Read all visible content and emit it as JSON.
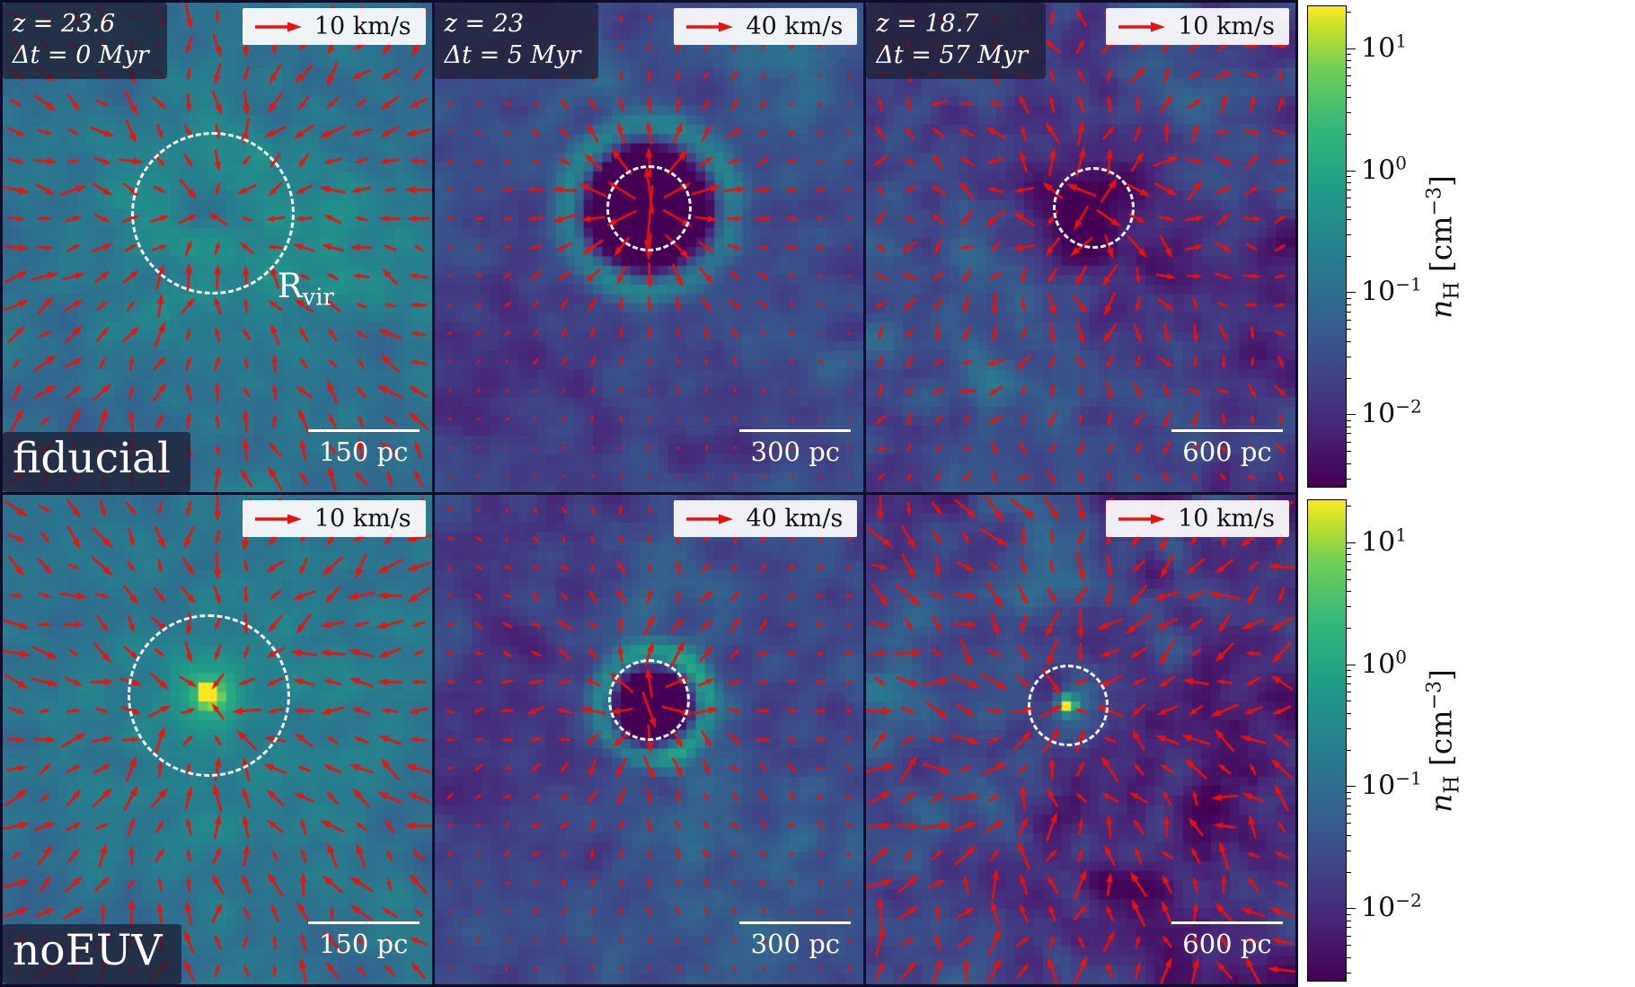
{
  "figure": {
    "colors": {
      "arrow": "#e8130c",
      "circle": "#ffffff",
      "panel_border": "#0e0e2a",
      "label_box": "rgba(32,32,54,0.78)",
      "key_box": "rgba(255,255,255,0.92)"
    }
  },
  "chart_data": {
    "type": "heatmap",
    "title": "",
    "colormap": "viridis",
    "log_range": [
      -2.6,
      1.35
    ],
    "grid": {
      "rows": 2,
      "cols": 3
    },
    "colorbar": {
      "base": "10",
      "ticks": [
        {
          "value": 1,
          "exp": "1"
        },
        {
          "value": 0,
          "exp": "0"
        },
        {
          "value": -1,
          "exp": "−1"
        },
        {
          "value": -2,
          "exp": "−2"
        }
      ],
      "label": {
        "var": "n",
        "sub": "H",
        "pre": " [cm",
        "sup": "−3",
        "post": "]"
      },
      "label_plain": "n_H [cm^-3]"
    },
    "panels": [
      {
        "id": "fiducial-t0",
        "corner": {
          "line1": "z = 23.6",
          "line2": "Δt = 0 Myr"
        },
        "quiver_key": "10 km/s",
        "scale_bar": "150 pc",
        "run_label": "fiducial",
        "rvir": {
          "main": "R",
          "sub": "vir"
        },
        "circle": {
          "cx": 0.49,
          "cy": 0.43,
          "r": 0.19
        },
        "field": {
          "base": -0.95,
          "noise": 0.18,
          "seed": 11,
          "features": [
            {
              "type": "blob",
              "x": 0.49,
              "y": 0.43,
              "s": 0.22,
              "a": 0.5
            },
            {
              "type": "blob",
              "x": 0.48,
              "y": 0.4,
              "s": 0.055,
              "a": -0.5
            },
            {
              "type": "blob",
              "x": 0.8,
              "y": 0.52,
              "s": 0.13,
              "a": 0.3
            },
            {
              "type": "blob",
              "x": 0.08,
              "y": 0.9,
              "s": 0.15,
              "a": -0.25
            }
          ]
        },
        "arrows": {
          "mode": "inflow",
          "n": 15,
          "len": 21,
          "swirl": 0.5,
          "seed": 101
        }
      },
      {
        "id": "fiducial-t5",
        "corner": {
          "line1": "z = 23",
          "line2": "Δt = 5 Myr"
        },
        "quiver_key": "40 km/s",
        "scale_bar": "300 pc",
        "circle": {
          "cx": 0.5,
          "cy": 0.42,
          "r": 0.1
        },
        "field": {
          "base": -1.55,
          "noise": 0.22,
          "seed": 22,
          "features": [
            {
              "type": "ring",
              "x": 0.5,
              "y": 0.42,
              "r0": 0.185,
              "w": 0.03,
              "a": 1.2
            },
            {
              "type": "disk",
              "x": 0.5,
              "y": 0.42,
              "r0": 0.16,
              "w": 0.018,
              "a": -1.7
            },
            {
              "type": "blob",
              "x": 0.82,
              "y": 0.1,
              "s": 0.11,
              "a": 0.55
            },
            {
              "type": "blob",
              "x": 0.12,
              "y": 0.72,
              "s": 0.18,
              "a": -0.3
            },
            {
              "type": "blob",
              "x": 0.5,
              "y": 0.95,
              "s": 0.25,
              "a": -0.2
            }
          ]
        },
        "arrows": {
          "mode": "outflow",
          "n": 15,
          "lmax": 62,
          "decay": 0.17,
          "lmin": 2.5,
          "swirl": 0.18,
          "seed": 202
        }
      },
      {
        "id": "fiducial-t57",
        "corner": {
          "line1": "z = 18.7",
          "line2": "Δt = 57 Myr"
        },
        "quiver_key": "10 km/s",
        "scale_bar": "600 pc",
        "circle": {
          "cx": 0.53,
          "cy": 0.42,
          "r": 0.095
        },
        "field": {
          "base": -1.8,
          "noise": 0.3,
          "seed": 33,
          "features": [
            {
              "type": "blob",
              "x": 0.54,
              "y": 0.42,
              "s": 0.12,
              "a": -0.85
            },
            {
              "type": "blob",
              "x": 0.5,
              "y": 0.46,
              "s": 0.05,
              "a": -0.5
            },
            {
              "type": "blob",
              "x": 0.18,
              "y": 0.62,
              "s": 0.2,
              "a": 0.5
            },
            {
              "type": "blob",
              "x": 0.75,
              "y": 0.25,
              "s": 0.16,
              "a": 0.35
            },
            {
              "type": "blob",
              "x": 0.45,
              "y": 0.85,
              "s": 0.2,
              "a": 0.25
            },
            {
              "type": "blob",
              "x": 0.9,
              "y": 0.6,
              "s": 0.12,
              "a": -0.4
            }
          ]
        },
        "arrows": {
          "mode": "outflow",
          "n": 15,
          "lmax": 26,
          "decay": 0.55,
          "lmin": 5,
          "swirl": 0.9,
          "seed": 303
        }
      },
      {
        "id": "noeuv-t0",
        "quiver_key": "10 km/s",
        "scale_bar": "150 pc",
        "run_label": "noEUV",
        "circle": {
          "cx": 0.48,
          "cy": 0.41,
          "r": 0.19
        },
        "field": {
          "base": -0.95,
          "noise": 0.18,
          "seed": 44,
          "features": [
            {
              "type": "blob",
              "x": 0.48,
              "y": 0.5,
              "s": 0.28,
              "a": 0.35
            },
            {
              "type": "blob",
              "x": 0.48,
              "y": 0.41,
              "s": 0.05,
              "a": 1.1
            },
            {
              "type": "blob",
              "x": 0.48,
              "y": 0.41,
              "s": 0.016,
              "a": 3.2
            },
            {
              "type": "blob",
              "x": 0.85,
              "y": 0.3,
              "s": 0.15,
              "a": 0.15
            },
            {
              "type": "blob",
              "x": 0.1,
              "y": 0.88,
              "s": 0.15,
              "a": -0.2
            }
          ]
        },
        "arrows": {
          "mode": "inflow",
          "n": 15,
          "len": 22,
          "swirl": 0.55,
          "seed": 404
        }
      },
      {
        "id": "noeuv-t5",
        "quiver_key": "40 km/s",
        "scale_bar": "300 pc",
        "circle": {
          "cx": 0.5,
          "cy": 0.42,
          "r": 0.095
        },
        "field": {
          "base": -1.6,
          "noise": 0.25,
          "seed": 55,
          "features": [
            {
              "type": "ring",
              "x": 0.51,
              "y": 0.43,
              "r0": 0.12,
              "w": 0.025,
              "a": 1.5
            },
            {
              "type": "disk",
              "x": 0.51,
              "y": 0.43,
              "r0": 0.1,
              "w": 0.012,
              "a": -1.5
            },
            {
              "type": "blob",
              "x": 0.72,
              "y": 0.78,
              "s": 0.16,
              "a": 0.4
            },
            {
              "type": "blob",
              "x": 0.55,
              "y": 0.22,
              "s": 0.1,
              "a": 0.35
            },
            {
              "type": "blob",
              "x": 0.15,
              "y": 0.5,
              "s": 0.2,
              "a": -0.3
            },
            {
              "type": "blob",
              "x": 0.1,
              "y": 0.1,
              "s": 0.12,
              "a": -0.2
            }
          ]
        },
        "arrows": {
          "mode": "outflow",
          "n": 15,
          "lmax": 40,
          "decay": 0.22,
          "lmin": 3.5,
          "swirl": 0.5,
          "seed": 505
        }
      },
      {
        "id": "noeuv-t57",
        "quiver_key": "10 km/s",
        "scale_bar": "600 pc",
        "circle": {
          "cx": 0.47,
          "cy": 0.43,
          "r": 0.095
        },
        "field": {
          "base": -1.8,
          "noise": 0.35,
          "seed": 66,
          "features": [
            {
              "type": "blob",
              "x": 0.47,
              "y": 0.43,
              "s": 0.014,
              "a": 2.9
            },
            {
              "type": "blob",
              "x": 0.47,
              "y": 0.43,
              "s": 0.04,
              "a": 0.8
            },
            {
              "type": "blob",
              "x": 0.12,
              "y": 0.35,
              "s": 0.18,
              "a": 0.5
            },
            {
              "type": "blob",
              "x": 0.42,
              "y": 0.08,
              "s": 0.12,
              "a": 0.5
            },
            {
              "type": "blob",
              "x": 0.85,
              "y": 0.5,
              "s": 0.14,
              "a": -0.55
            },
            {
              "type": "blob",
              "x": 0.65,
              "y": 0.85,
              "s": 0.16,
              "a": -0.45
            },
            {
              "type": "blob",
              "x": 0.15,
              "y": 0.8,
              "s": 0.15,
              "a": 0.3
            }
          ]
        },
        "arrows": {
          "mode": "inflow",
          "n": 15,
          "len": 25,
          "swirl": 0.8,
          "seed": 606
        }
      }
    ]
  }
}
